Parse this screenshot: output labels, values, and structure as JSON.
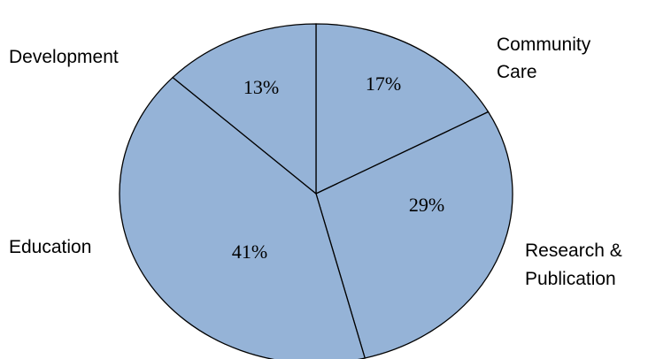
{
  "chart_data": {
    "type": "pie",
    "start_angle_deg": 0,
    "direction": "clockwise",
    "slices": [
      {
        "label": "Community Care",
        "label_lines": [
          "Community",
          "Care"
        ],
        "value": 17,
        "display": "17%",
        "color": "#95b3d7"
      },
      {
        "label": "Research & Publication",
        "label_lines": [
          "Research &",
          "Publication"
        ],
        "value": 29,
        "display": "29%",
        "color": "#95b3d7"
      },
      {
        "label": "Education",
        "label_lines": [
          "Education"
        ],
        "value": 41,
        "display": "41%",
        "color": "#95b3d7"
      },
      {
        "label": "Development",
        "label_lines": [
          "Development"
        ],
        "value": 13,
        "display": "13%",
        "color": "#95b3d7"
      }
    ]
  }
}
